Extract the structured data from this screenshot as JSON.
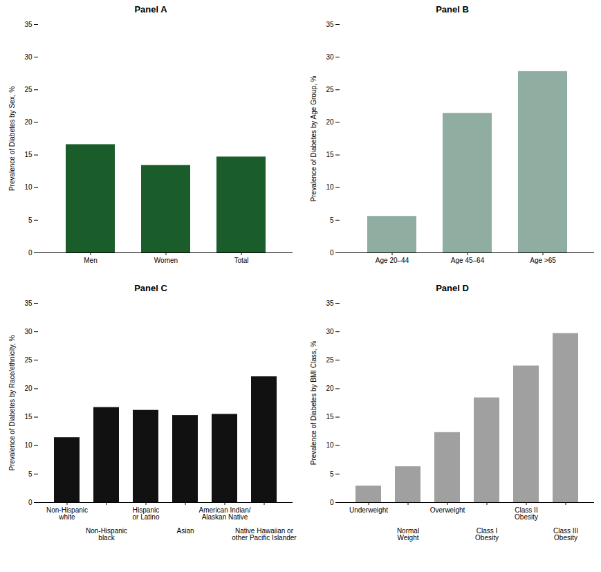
{
  "chart_data": [
    {
      "type": "bar",
      "title": "Panel A",
      "categories": [
        "Men",
        "Women",
        "Total"
      ],
      "values": [
        16.6,
        13.4,
        14.7
      ],
      "color": "#1a5c2a",
      "ylabel": "Prevalence of Diabetes by Sex, %",
      "ylim": [
        0,
        35
      ],
      "yticks": [
        0,
        5,
        10,
        15,
        20,
        25,
        30,
        35
      ],
      "grid": false
    },
    {
      "type": "bar",
      "title": "Panel B",
      "categories": [
        "Age 20–44",
        "Age 45–64",
        "Age >65"
      ],
      "values": [
        5.6,
        21.4,
        27.8
      ],
      "color": "#8fada0",
      "ylabel": "Prevalence of Diabetes by Age Group, %",
      "ylim": [
        0,
        35
      ],
      "yticks": [
        0,
        5,
        10,
        15,
        20,
        25,
        30,
        35
      ],
      "grid": false
    },
    {
      "type": "bar",
      "title": "Panel C",
      "categories": [
        "Non-Hispanic\nwhite",
        "Non-Hispanic\nblack",
        "Hispanic\nor Latino",
        "Asian",
        "American Indian/\nAlaskan Native",
        "Native Hawaiian or\nother Pacific Islander"
      ],
      "values": [
        11.4,
        16.7,
        16.2,
        15.3,
        15.5,
        22.1
      ],
      "color": "#111111",
      "ylabel": "Prevalence of Diabetes by Race/ethnicity, %",
      "ylim": [
        0,
        35
      ],
      "yticks": [
        0,
        5,
        10,
        15,
        20,
        25,
        30,
        35
      ],
      "grid": false
    },
    {
      "type": "bar",
      "title": "Panel D",
      "categories": [
        "Underweight",
        "Normal\nWeight",
        "Overweight",
        "Class I\nObesity",
        "Class II\nObesity",
        "Class III\nObesity"
      ],
      "values": [
        2.9,
        6.3,
        12.3,
        18.4,
        24.0,
        29.7
      ],
      "color": "#a0a0a0",
      "ylabel": "Prevalence of Diabetes by BMI Class, %",
      "ylim": [
        0,
        35
      ],
      "yticks": [
        0,
        5,
        10,
        15,
        20,
        25,
        30,
        35
      ],
      "grid": false
    }
  ]
}
